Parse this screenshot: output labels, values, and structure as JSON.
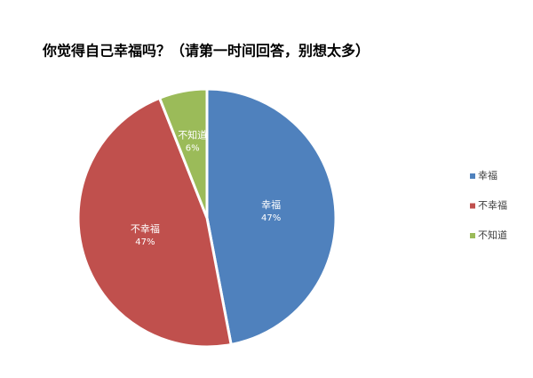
{
  "chart_data": {
    "type": "pie",
    "title": "你觉得自己幸福吗？（请第一时间回答，别想太多）",
    "categories": [
      "幸福",
      "不幸福",
      "不知道"
    ],
    "values": [
      47,
      47,
      6
    ],
    "value_labels": [
      "47%",
      "47%",
      "6%"
    ],
    "colors": [
      "#4f81bd",
      "#c0504d",
      "#9bbb59"
    ],
    "legend": "right"
  }
}
